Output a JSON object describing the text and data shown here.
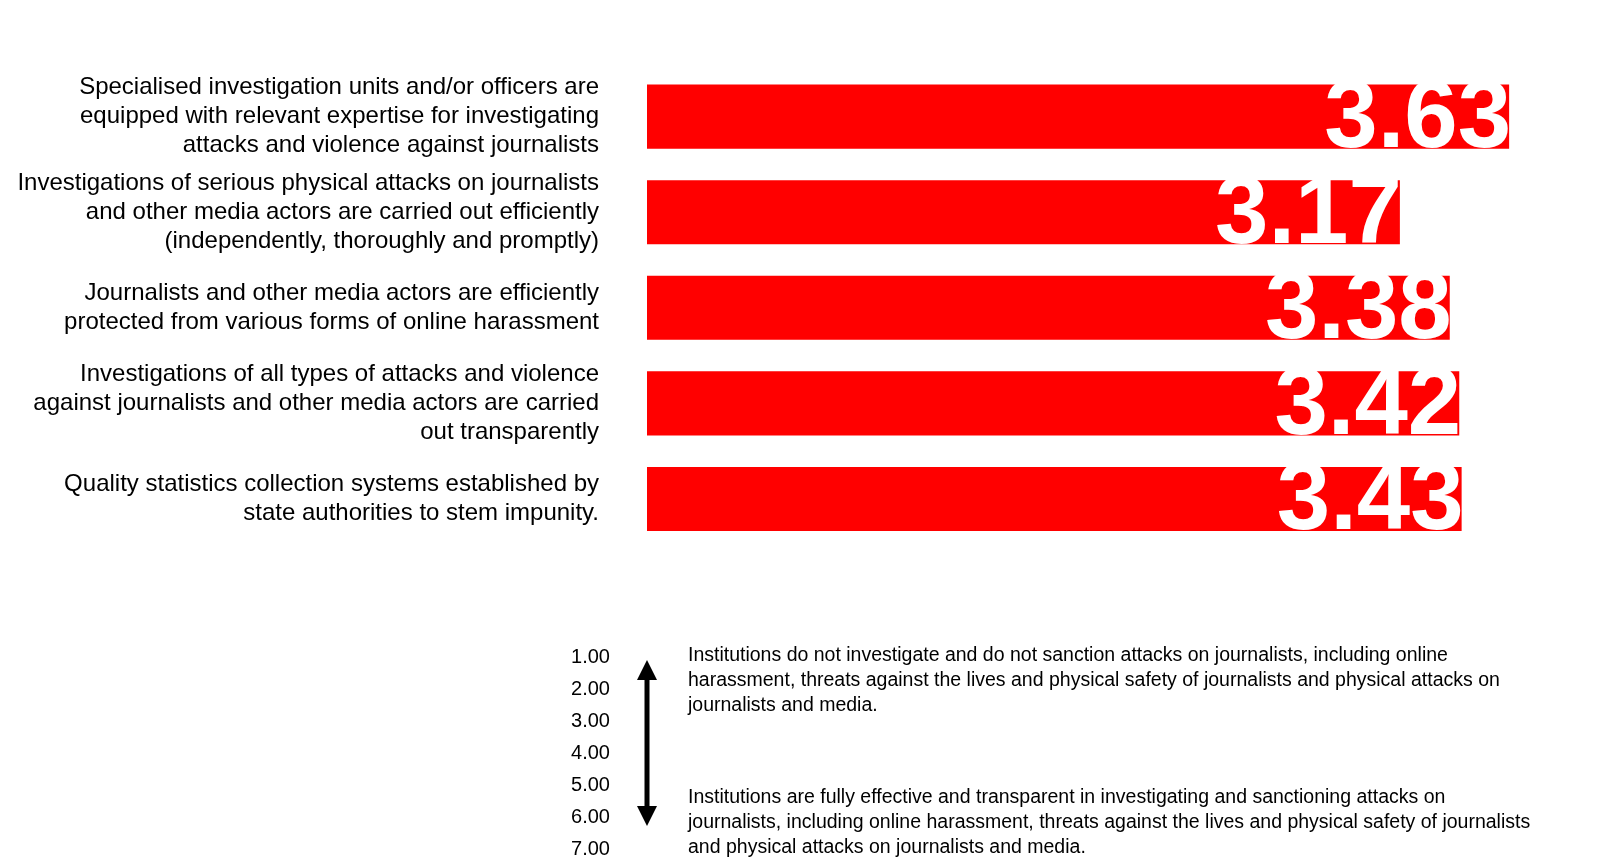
{
  "chart_data": {
    "type": "bar",
    "orientation": "horizontal",
    "categories": [
      "Specialised investigation units and/or officers are equipped with relevant expertise for investigating attacks and violence against journalists",
      "Investigations of serious physical attacks on journalists and other media actors are carried out efficiently (independently, thoroughly and promptly)",
      "Journalists and other media actors are efficiently protected from various forms of online harassment",
      "Investigations of all types of attacks and violence against journalists and other media actors are carried out transparently",
      "Quality statistics collection systems established by state authorities to stem impunity."
    ],
    "values": [
      3.63,
      3.17,
      3.38,
      3.42,
      3.43
    ],
    "color": "#ff0000",
    "data_labels": true,
    "tick_labels": "y",
    "legend": false,
    "annotations": [
      "1.00",
      "2.00",
      "3.00",
      "4.00",
      "5.00",
      "6.00",
      "7.00",
      "Institutions do not investigate and do not sanction attacks on journalists, including online harassment, threats against the lives and physical safety of journalists and physical attacks on journalists and media.",
      "Institutions are fully effective and transparent in investigating and sanctioning attacks on journalists, including online harassment, threats against the lives and physical safety of journalists and physical attacks on journalists and media."
    ]
  }
}
